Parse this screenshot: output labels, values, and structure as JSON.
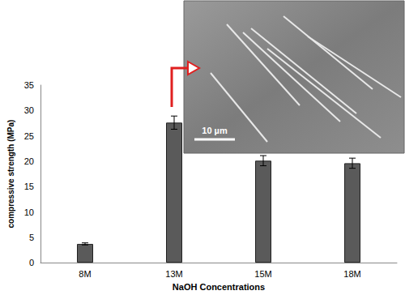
{
  "chart_data": {
    "type": "bar",
    "categories": [
      "8M",
      "13M",
      "15M",
      "18M"
    ],
    "values": [
      3.7,
      27.6,
      20.1,
      19.6
    ],
    "errors": [
      0.2,
      1.3,
      1.0,
      1.0
    ],
    "color": "#5a5a5a",
    "x_label": "NaOH Concentrations",
    "y_label": "compressive strength (MPa)",
    "ylim": [
      0,
      35
    ],
    "yticks": [
      0,
      5,
      10,
      15,
      20,
      25,
      30,
      35
    ],
    "grid": false,
    "inset_scale_bar": "10 µm"
  }
}
